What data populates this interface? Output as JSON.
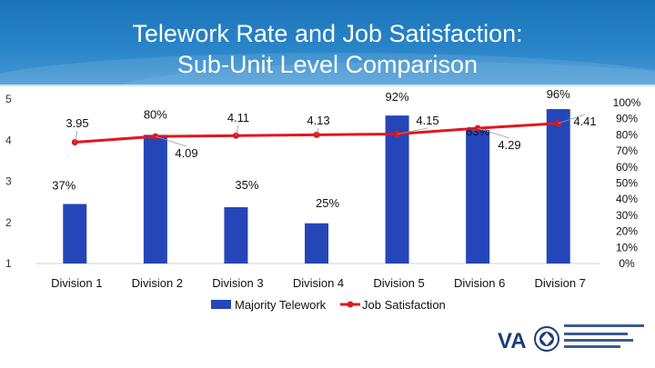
{
  "title_line1": "Telework Rate and Job Satisfaction:",
  "title_line2": "Sub-Unit Level Comparison",
  "footer": {
    "va_mark": "VA",
    "logo_icon": "va-seal-icon"
  },
  "colors": {
    "bar": "#2446b8",
    "line": "#e0171e",
    "header": "#1b73b8"
  },
  "chart_data": {
    "type": "bar",
    "categories": [
      "Division 1",
      "Division 2",
      "Division 3",
      "Division 4",
      "Division 5",
      "Division 6",
      "Division 7"
    ],
    "series": [
      {
        "name": "Majority Telework",
        "type": "bar",
        "axis": "right",
        "values": [
          37,
          80,
          35,
          25,
          92,
          83,
          96
        ],
        "labels": [
          "37%",
          "80%",
          "35%",
          "25%",
          "92%",
          "83%",
          "96%"
        ]
      },
      {
        "name": "Job Satisfaction",
        "type": "line",
        "axis": "left",
        "values": [
          3.95,
          4.09,
          4.11,
          4.13,
          4.15,
          4.29,
          4.41
        ],
        "labels": [
          "3.95",
          "4.09",
          "4.11",
          "4.13",
          "4.15",
          "4.29",
          "4.41"
        ]
      }
    ],
    "y_left": {
      "min": 1,
      "max": 5,
      "ticks": [
        "1",
        "2",
        "3",
        "4",
        "5"
      ]
    },
    "y_right": {
      "min": 0,
      "max": 100,
      "ticks": [
        "0%",
        "10%",
        "20%",
        "30%",
        "40%",
        "50%",
        "60%",
        "70%",
        "80%",
        "90%",
        "100%"
      ]
    },
    "legend_position": "bottom"
  }
}
